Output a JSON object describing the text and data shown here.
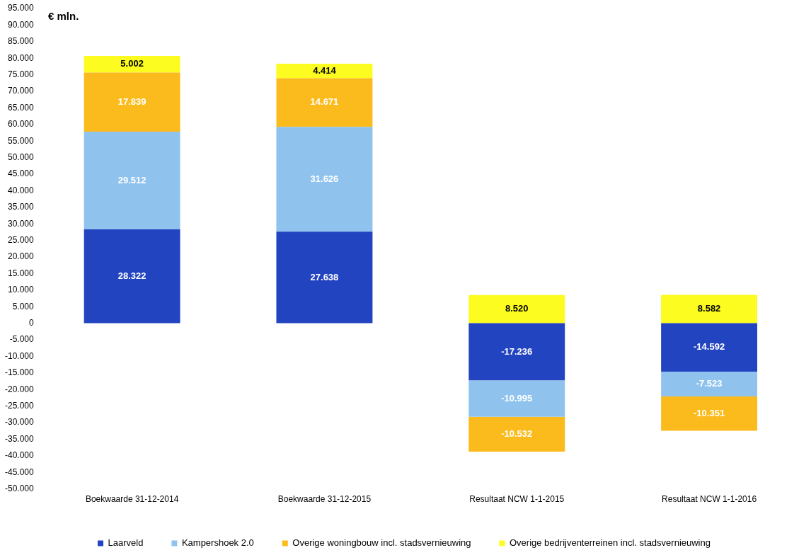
{
  "chart_data": {
    "type": "bar",
    "stacked": true,
    "ylabel": "€ mln.",
    "categories": [
      "Boekwaarde 31-12-2014",
      "Boekwaarde 31-12-2015",
      "Resultaat NCW 1-1-2015",
      "Resultaat NCW 1-1-2016"
    ],
    "series": [
      {
        "name": "Laarveld",
        "color": "#2344c0",
        "values": [
          28.322,
          27.638,
          -17.236,
          -14.592
        ],
        "value_labels": [
          "28.322",
          "27.638",
          "-17.236",
          "-14.592"
        ]
      },
      {
        "name": "Kampershoek 2.0",
        "color": "#8fc3ee",
        "values": [
          29.512,
          31.626,
          -10.995,
          -7.523
        ],
        "value_labels": [
          "29.512",
          "31.626",
          "-10.995",
          "-7.523"
        ]
      },
      {
        "name": "Overige woningbouw incl. stadsvernieuwing",
        "color": "#fbbb1c",
        "values": [
          17.839,
          14.671,
          -10.532,
          -10.351
        ],
        "value_labels": [
          "17.839",
          "14.671",
          "-10.532",
          "-10.351"
        ]
      },
      {
        "name": "Overige bedrijventerreinen incl. stadsvernieuwing",
        "color": "#fcfc20",
        "values": [
          5.002,
          4.414,
          8.52,
          8.582
        ],
        "value_labels": [
          "5.002",
          "4.414",
          "8.520",
          "8.582"
        ]
      }
    ],
    "ylim": [
      -50,
      95
    ],
    "yticks": [
      {
        "value": -50,
        "label": "-50.000"
      },
      {
        "value": -45,
        "label": "-45.000"
      },
      {
        "value": -40,
        "label": "-40.000"
      },
      {
        "value": -35,
        "label": "-35.000"
      },
      {
        "value": -30,
        "label": "-30.000"
      },
      {
        "value": -25,
        "label": "-25.000"
      },
      {
        "value": -20,
        "label": "-20.000"
      },
      {
        "value": -15,
        "label": "-15.000"
      },
      {
        "value": -10,
        "label": "-10.000"
      },
      {
        "value": -5,
        "label": "-5.000"
      },
      0,
      {
        "value": 5,
        "label": "5.000"
      },
      {
        "value": 10,
        "label": "10.000"
      },
      {
        "value": 15,
        "label": "15.000"
      },
      {
        "value": 20,
        "label": "20.000"
      },
      {
        "value": 25,
        "label": "25.000"
      },
      {
        "value": 30,
        "label": "30.000"
      },
      {
        "value": 35,
        "label": "35.000"
      },
      {
        "value": 40,
        "label": "40.000"
      },
      {
        "value": 45,
        "label": "45.000"
      },
      {
        "value": 50,
        "label": "50.000"
      },
      {
        "value": 55,
        "label": "55.000"
      },
      {
        "value": 60,
        "label": "60.000"
      },
      {
        "value": 65,
        "label": "65.000"
      },
      {
        "value": 70,
        "label": "70.000"
      },
      {
        "value": 75,
        "label": "75.000"
      },
      {
        "value": 80,
        "label": "80.000"
      },
      {
        "value": 85,
        "label": "85.000"
      },
      {
        "value": 90,
        "label": "90.000"
      },
      {
        "value": 95,
        "label": "95.000"
      }
    ],
    "grid": false,
    "legend": "bottom"
  }
}
